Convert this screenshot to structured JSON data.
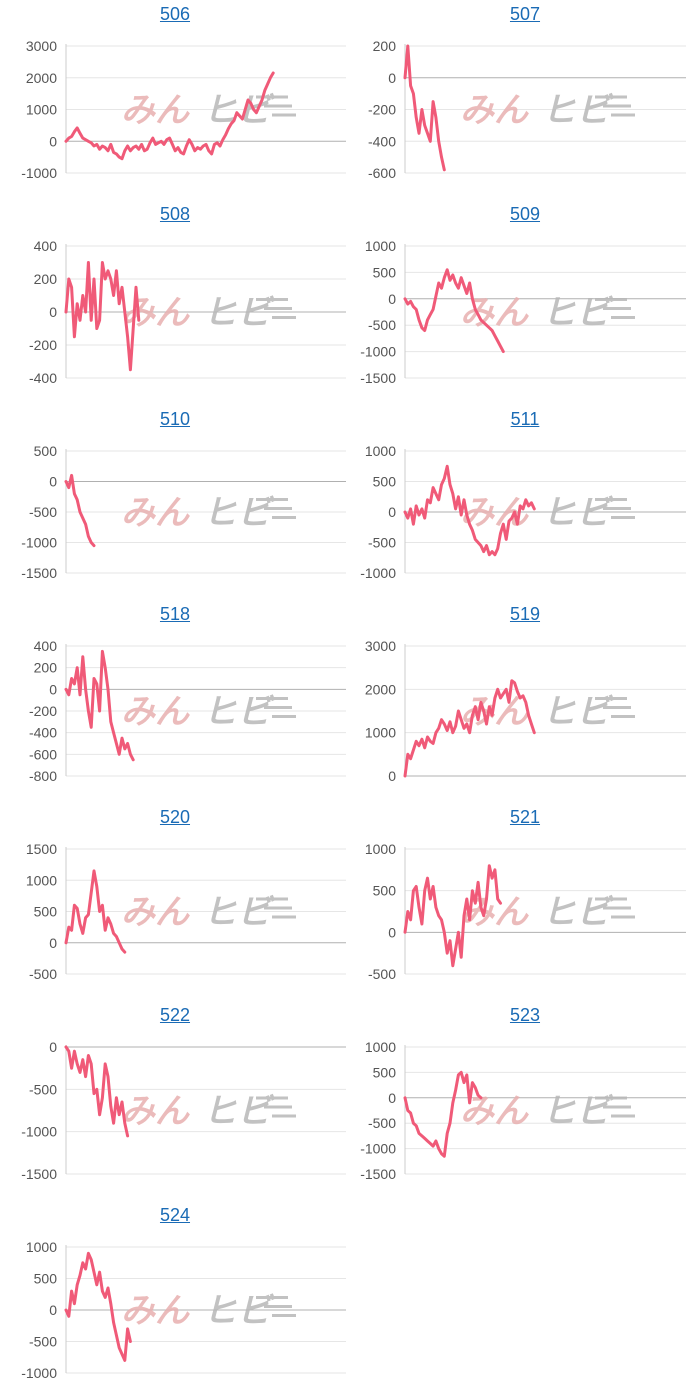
{
  "watermark": {
    "left": "みん",
    "right": "ヒビ"
  },
  "colors": {
    "line": "#f05a78",
    "grid": "#e6e6e6",
    "zero": "#b0b0b0",
    "axis": "#cccccc",
    "title": "#1a6bb5",
    "wm_left": "#e8b0b0",
    "wm_right": "#b8b8b8"
  },
  "chart_data": [
    {
      "type": "line",
      "title": "506",
      "ylim": [
        -1000,
        3000
      ],
      "yticks": [
        3000,
        2000,
        1000,
        0,
        -1000
      ],
      "x_extent": 100,
      "values": [
        0,
        100,
        150,
        300,
        420,
        250,
        100,
        50,
        0,
        -50,
        -150,
        -100,
        -250,
        -150,
        -200,
        -300,
        -100,
        -350,
        -400,
        -500,
        -550,
        -300,
        -150,
        -300,
        -200,
        -150,
        -250,
        -100,
        -300,
        -250,
        -50,
        100,
        -100,
        -50,
        0,
        -100,
        50,
        100,
        -100,
        -300,
        -200,
        -350,
        -400,
        -150,
        50,
        -100,
        -300,
        -200,
        -250,
        -150,
        -100,
        -300,
        -400,
        -100,
        -50,
        -150,
        50,
        200,
        400,
        550,
        650,
        900,
        800,
        700,
        1000,
        1300,
        1200,
        1000,
        900,
        1100,
        1300,
        1600,
        1800,
        2000,
        2150
      ]
    },
    {
      "type": "line",
      "title": "507",
      "ylim": [
        -600,
        200
      ],
      "yticks": [
        200,
        0,
        -200,
        -400,
        -600
      ],
      "x_extent": 100,
      "values": [
        0,
        200,
        -50,
        -100,
        -250,
        -350,
        -200,
        -300,
        -350,
        -400,
        -150,
        -250,
        -400,
        -500,
        -580
      ]
    },
    {
      "type": "line",
      "title": "508",
      "ylim": [
        -400,
        400
      ],
      "yticks": [
        400,
        200,
        0,
        -200,
        -400
      ],
      "x_extent": 100,
      "values": [
        0,
        200,
        150,
        -150,
        50,
        -50,
        100,
        0,
        300,
        -50,
        200,
        -100,
        -50,
        300,
        200,
        250,
        200,
        100,
        250,
        50,
        150,
        0,
        -150,
        -350,
        -100,
        150,
        -50
      ]
    },
    {
      "type": "line",
      "title": "509",
      "ylim": [
        -1500,
        1000
      ],
      "yticks": [
        1000,
        500,
        0,
        -500,
        -1000,
        -1500
      ],
      "x_extent": 100,
      "values": [
        0,
        -100,
        -50,
        -150,
        -200,
        -400,
        -550,
        -600,
        -400,
        -300,
        -200,
        50,
        300,
        200,
        400,
        550,
        350,
        450,
        300,
        200,
        400,
        250,
        100,
        300,
        0,
        -200,
        -300,
        -400,
        -450,
        -500,
        -550,
        -600,
        -700,
        -800,
        -900,
        -1000
      ]
    },
    {
      "type": "line",
      "title": "510",
      "ylim": [
        -1500,
        500
      ],
      "yticks": [
        500,
        0,
        -500,
        -1000,
        -1500
      ],
      "x_extent": 100,
      "values": [
        0,
        -100,
        100,
        -200,
        -300,
        -500,
        -600,
        -700,
        -900,
        -1000,
        -1050
      ]
    },
    {
      "type": "line",
      "title": "511",
      "ylim": [
        -1000,
        1000
      ],
      "yticks": [
        1000,
        500,
        0,
        -500,
        -1000
      ],
      "x_extent": 100,
      "values": [
        0,
        -100,
        50,
        -200,
        100,
        -50,
        50,
        -100,
        200,
        150,
        400,
        300,
        200,
        450,
        550,
        750,
        450,
        300,
        50,
        250,
        -50,
        200,
        -50,
        -200,
        -300,
        -450,
        -500,
        -550,
        -650,
        -550,
        -700,
        -650,
        -700,
        -600,
        -350,
        -200,
        -450,
        -150,
        -100,
        0,
        -200,
        100,
        50,
        200,
        100,
        150,
        50
      ]
    },
    {
      "type": "line",
      "title": "518",
      "ylim": [
        -800,
        400
      ],
      "yticks": [
        400,
        200,
        0,
        -200,
        -400,
        -600,
        -800
      ],
      "x_extent": 100,
      "values": [
        0,
        -50,
        100,
        50,
        200,
        -50,
        300,
        0,
        -200,
        -350,
        100,
        50,
        -200,
        350,
        200,
        0,
        -300,
        -400,
        -500,
        -600,
        -450,
        -550,
        -500,
        -600,
        -650
      ]
    },
    {
      "type": "line",
      "title": "519",
      "ylim": [
        0,
        3000
      ],
      "yticks": [
        3000,
        2000,
        1000,
        0
      ],
      "x_extent": 100,
      "values": [
        0,
        500,
        400,
        600,
        800,
        700,
        850,
        650,
        900,
        800,
        750,
        1000,
        1100,
        1300,
        1200,
        1050,
        1250,
        1000,
        1150,
        1500,
        1300,
        1100,
        1200,
        1000,
        1400,
        1600,
        1300,
        1700,
        1500,
        1200,
        1600,
        1400,
        1800,
        2000,
        1800,
        1900,
        2000,
        1700,
        2200,
        2150,
        1950,
        1800,
        1850,
        1700,
        1400,
        1200,
        1000
      ]
    },
    {
      "type": "line",
      "title": "520",
      "ylim": [
        -500,
        1500
      ],
      "yticks": [
        1500,
        1000,
        500,
        0,
        -500
      ],
      "x_extent": 100,
      "values": [
        0,
        250,
        200,
        600,
        550,
        300,
        150,
        400,
        450,
        800,
        1150,
        900,
        500,
        600,
        200,
        400,
        300,
        150,
        100,
        0,
        -100,
        -150
      ]
    },
    {
      "type": "line",
      "title": "521",
      "ylim": [
        -500,
        1000
      ],
      "yticks": [
        1000,
        500,
        0,
        -500
      ],
      "x_extent": 100,
      "values": [
        0,
        250,
        150,
        500,
        550,
        300,
        100,
        500,
        650,
        400,
        550,
        300,
        200,
        150,
        0,
        -250,
        -100,
        -400,
        -200,
        0,
        -300,
        200,
        400,
        150,
        500,
        350,
        600,
        300,
        200,
        400,
        800,
        650,
        750,
        400,
        350
      ]
    },
    {
      "type": "line",
      "title": "522",
      "ylim": [
        -1500,
        0
      ],
      "yticks": [
        0,
        -500,
        -1000,
        -1500
      ],
      "x_extent": 100,
      "values": [
        0,
        -50,
        -250,
        -50,
        -200,
        -300,
        -150,
        -350,
        -100,
        -200,
        -550,
        -500,
        -800,
        -600,
        -200,
        -350,
        -700,
        -900,
        -600,
        -800,
        -650,
        -900,
        -1050
      ]
    },
    {
      "type": "line",
      "title": "523",
      "ylim": [
        -1500,
        1000
      ],
      "yticks": [
        1000,
        500,
        0,
        -500,
        -1000,
        -1500
      ],
      "x_extent": 100,
      "values": [
        0,
        -250,
        -300,
        -500,
        -550,
        -700,
        -750,
        -800,
        -850,
        -900,
        -950,
        -850,
        -1000,
        -1100,
        -1150,
        -700,
        -500,
        -100,
        150,
        450,
        500,
        300,
        450,
        -100,
        300,
        200,
        50,
        0
      ]
    },
    {
      "type": "line",
      "title": "524",
      "ylim": [
        -1000,
        1000
      ],
      "yticks": [
        1000,
        500,
        0,
        -500,
        -1000
      ],
      "x_extent": 100,
      "values": [
        0,
        -100,
        300,
        100,
        400,
        550,
        750,
        650,
        900,
        800,
        600,
        400,
        600,
        300,
        200,
        350,
        100,
        -200,
        -400,
        -600,
        -700,
        -800,
        -300,
        -500
      ]
    }
  ]
}
